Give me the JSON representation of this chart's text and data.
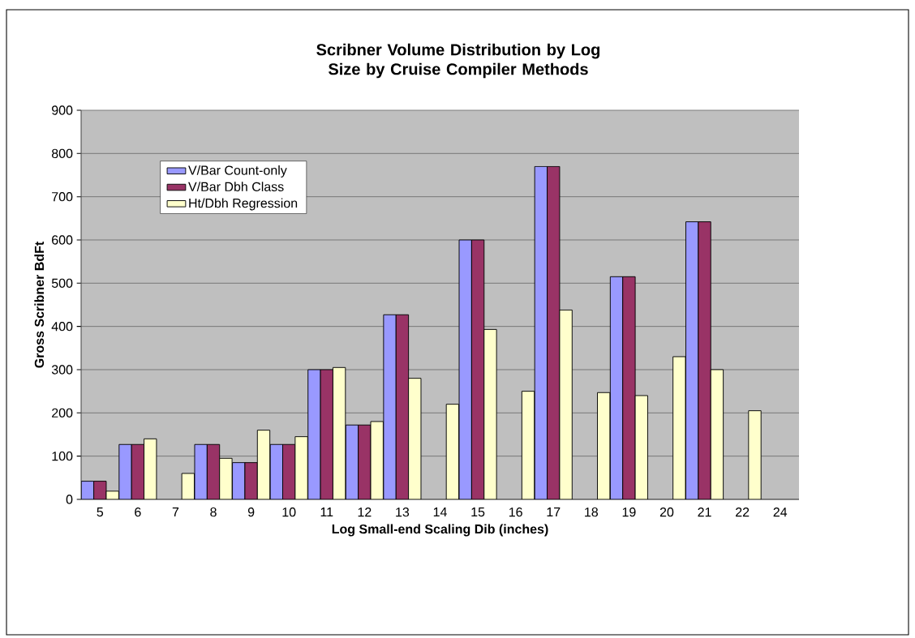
{
  "chart_data": {
    "type": "bar",
    "title": "Scribner Volume Distribution by Log Size by Cruise Compiler Methods",
    "xlabel": "Log Small-end Scaling Dib (inches)",
    "ylabel": "Gross Scribner BdFt",
    "categories": [
      "5",
      "6",
      "7",
      "8",
      "9",
      "10",
      "11",
      "12",
      "13",
      "14",
      "15",
      "16",
      "17",
      "18",
      "19",
      "20",
      "21",
      "22",
      "24"
    ],
    "series": [
      {
        "name": "V/Bar Count-only",
        "color": "#9999ff",
        "values": [
          42,
          127,
          null,
          127,
          85,
          127,
          300,
          172,
          427,
          null,
          600,
          null,
          770,
          null,
          515,
          null,
          642,
          null,
          null
        ]
      },
      {
        "name": "V/Bar Dbh Class",
        "color": "#993366",
        "values": [
          42,
          127,
          null,
          127,
          85,
          127,
          300,
          172,
          427,
          null,
          600,
          null,
          770,
          null,
          515,
          null,
          642,
          null,
          null
        ]
      },
      {
        "name": "Ht/Dbh Regression",
        "color": "#ffffcc",
        "values": [
          19,
          140,
          60,
          95,
          160,
          145,
          305,
          180,
          280,
          220,
          393,
          250,
          438,
          247,
          240,
          330,
          300,
          205,
          null
        ]
      }
    ],
    "ylim": [
      0,
      900
    ],
    "yticks": [
      0,
      100,
      200,
      300,
      400,
      500,
      600,
      700,
      800,
      900
    ],
    "grid": "y",
    "legend": "top left"
  }
}
